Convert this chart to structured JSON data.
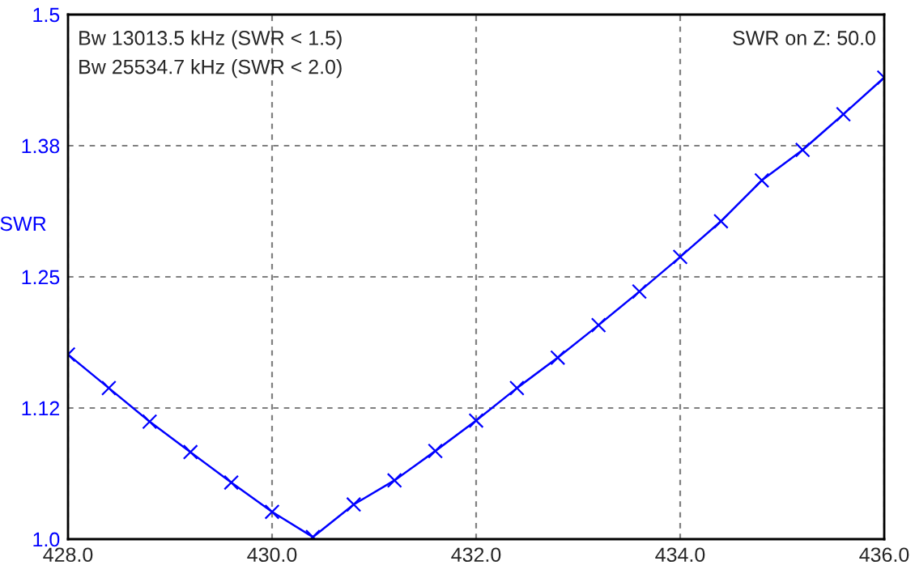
{
  "chart_data": {
    "type": "line",
    "ylabel": "SWR",
    "annotations": [
      "Bw 13013.5 kHz (SWR < 1.5)",
      "Bw 25534.7 kHz (SWR < 2.0)",
      "SWR on Z: 50.0"
    ],
    "x": [
      428.0,
      428.4,
      428.8,
      429.2,
      429.6,
      430.0,
      430.4,
      430.8,
      431.2,
      431.6,
      432.0,
      432.4,
      432.8,
      433.2,
      433.6,
      434.0,
      434.4,
      434.8,
      435.2,
      435.6,
      436.0
    ],
    "series": [
      {
        "color": "#0000ff",
        "values": [
          1.176,
          1.144,
          1.112,
          1.083,
          1.054,
          1.026,
          1.002,
          1.033,
          1.056,
          1.084,
          1.113,
          1.144,
          1.173,
          1.204,
          1.236,
          1.269,
          1.303,
          1.342,
          1.371,
          1.405,
          1.44
        ]
      }
    ],
    "xlim": [
      428.0,
      436.0
    ],
    "xticks": [
      {
        "value": 428,
        "label": "428.0"
      },
      {
        "value": 430,
        "label": "430.0"
      },
      {
        "value": 432,
        "label": "432.0"
      },
      {
        "value": 434,
        "label": "434.0"
      },
      {
        "value": 436,
        "label": "436.0"
      }
    ],
    "ylim": [
      1.0,
      1.5
    ],
    "yticks": [
      {
        "value": 1.0,
        "label": "1.0"
      },
      {
        "value": 1.125,
        "label": "1.12"
      },
      {
        "value": 1.25,
        "label": "1.25"
      },
      {
        "value": 1.375,
        "label": "1.38"
      },
      {
        "value": 1.5,
        "label": "1.5"
      }
    ],
    "grid": true,
    "marker": "cross",
    "line_style": "solid"
  }
}
